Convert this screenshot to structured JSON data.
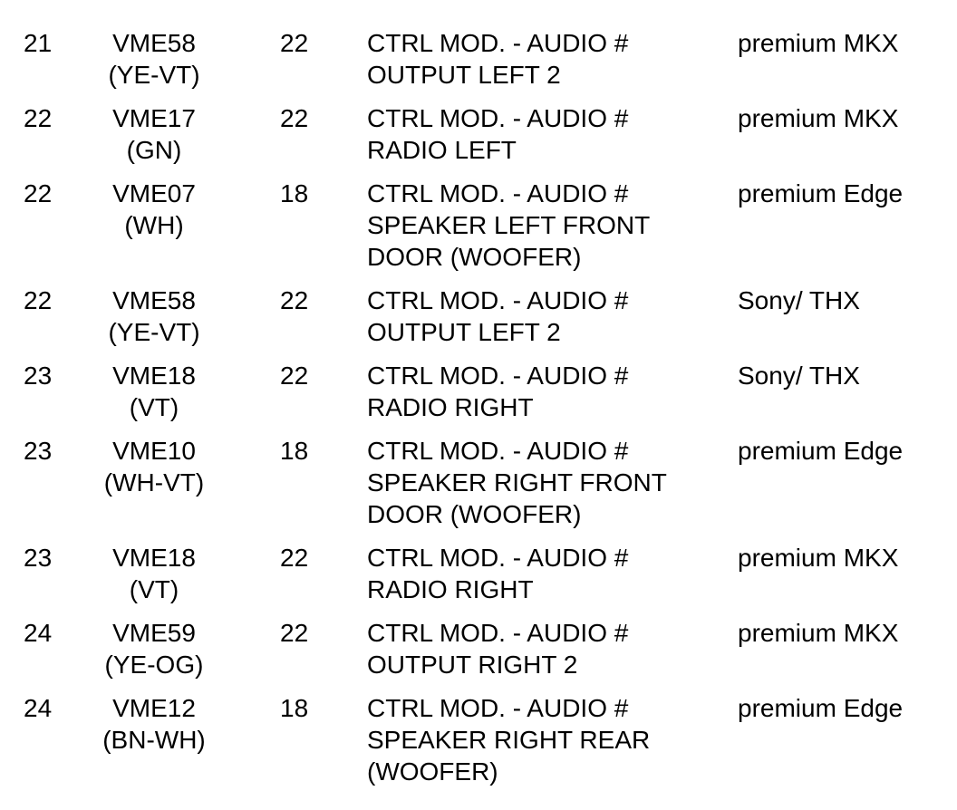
{
  "rows": [
    {
      "pin": "21",
      "circuit": [
        "VME58",
        "(YE-VT)"
      ],
      "gauge": "22",
      "description": [
        "CTRL MOD. - AUDIO #",
        "OUTPUT LEFT 2"
      ],
      "option": "premium MKX"
    },
    {
      "pin": "22",
      "circuit": [
        "VME17",
        "(GN)"
      ],
      "gauge": "22",
      "description": [
        "CTRL MOD. - AUDIO #",
        "RADIO LEFT"
      ],
      "option": "premium MKX"
    },
    {
      "pin": "22",
      "circuit": [
        "VME07",
        "(WH)"
      ],
      "gauge": "18",
      "description": [
        "CTRL MOD. - AUDIO #",
        "SPEAKER LEFT FRONT",
        "DOOR (WOOFER)"
      ],
      "option": "premium Edge"
    },
    {
      "pin": "22",
      "circuit": [
        "VME58",
        "(YE-VT)"
      ],
      "gauge": "22",
      "description": [
        "CTRL MOD. - AUDIO #",
        "OUTPUT LEFT 2"
      ],
      "option": "Sony/ THX"
    },
    {
      "pin": "23",
      "circuit": [
        "VME18",
        "(VT)"
      ],
      "gauge": "22",
      "description": [
        "CTRL MOD. - AUDIO #",
        "RADIO RIGHT"
      ],
      "option": "Sony/ THX"
    },
    {
      "pin": "23",
      "circuit": [
        "VME10",
        "(WH-VT)"
      ],
      "gauge": "18",
      "description": [
        "CTRL MOD. - AUDIO #",
        "SPEAKER RIGHT FRONT",
        "DOOR (WOOFER)"
      ],
      "option": "premium Edge"
    },
    {
      "pin": "23",
      "circuit": [
        "VME18",
        "(VT)"
      ],
      "gauge": "22",
      "description": [
        "CTRL MOD. - AUDIO #",
        "RADIO RIGHT"
      ],
      "option": "premium MKX"
    },
    {
      "pin": "24",
      "circuit": [
        "VME59",
        "(YE-OG)"
      ],
      "gauge": "22",
      "description": [
        "CTRL MOD. - AUDIO #",
        "OUTPUT RIGHT 2"
      ],
      "option": "premium MKX"
    },
    {
      "pin": "24",
      "circuit": [
        "VME12",
        "(BN-WH)"
      ],
      "gauge": "18",
      "description": [
        "CTRL MOD. - AUDIO #",
        "SPEAKER RIGHT REAR",
        "(WOOFER)"
      ],
      "option": "premium Edge"
    }
  ]
}
